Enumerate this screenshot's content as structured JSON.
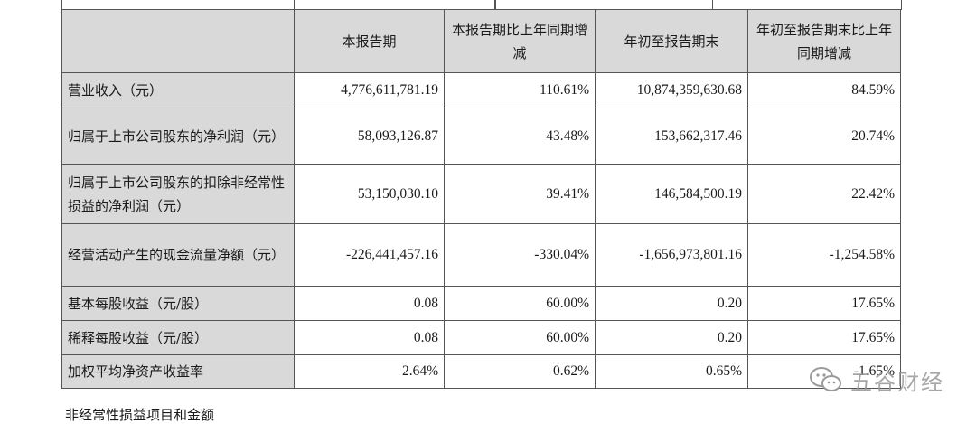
{
  "table": {
    "headers": [
      "",
      "本报告期",
      "本报告期比上年同期增减",
      "年初至报告期末",
      "年初至报告期末比上年同期增减"
    ],
    "rows": [
      {
        "label": "营业收入（元）",
        "v1": "4,776,611,781.19",
        "v2": "110.61%",
        "v3": "10,874,359,630.68",
        "v4": "84.59%"
      },
      {
        "label": "归属于上市公司股东的净利润（元）",
        "v1": "58,093,126.87",
        "v2": "43.48%",
        "v3": "153,662,317.46",
        "v4": "20.74%"
      },
      {
        "label": "归属于上市公司股东的扣除非经常性损益的净利润（元）",
        "v1": "53,150,030.10",
        "v2": "39.41%",
        "v3": "146,584,500.19",
        "v4": "22.42%"
      },
      {
        "label": "经营活动产生的现金流量净额（元）",
        "v1": "-226,441,457.16",
        "v2": "-330.04%",
        "v3": "-1,656,973,801.16",
        "v4": "-1,254.58%"
      },
      {
        "label": "基本每股收益（元/股）",
        "v1": "0.08",
        "v2": "60.00%",
        "v3": "0.20",
        "v4": "17.65%"
      },
      {
        "label": "稀释每股收益（元/股）",
        "v1": "0.08",
        "v2": "60.00%",
        "v3": "0.20",
        "v4": "17.65%"
      },
      {
        "label": "加权平均净资产收益率",
        "v1": "2.64%",
        "v2": "0.62%",
        "v3": "0.65%",
        "v4": "-1.65%"
      }
    ]
  },
  "footer": "非经常性损益项目和金额",
  "watermark": {
    "text": "五谷财经",
    "icon": "wechat-icon"
  }
}
